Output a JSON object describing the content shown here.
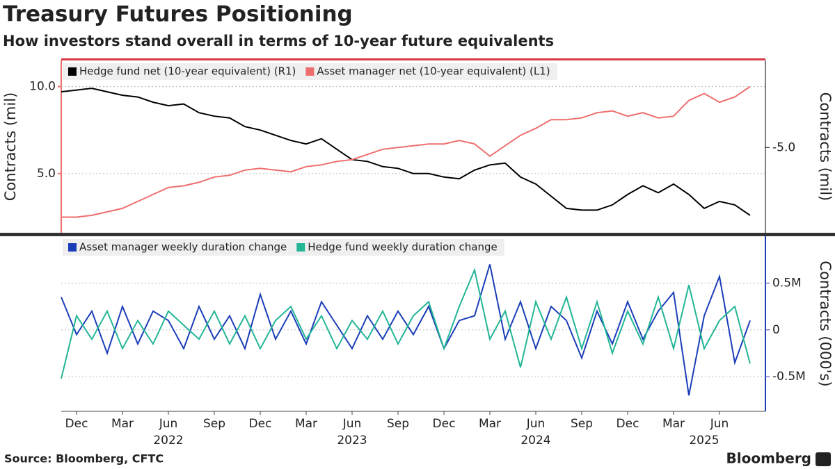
{
  "title": "Treasury Futures Positioning",
  "subtitle": "How investors stand overall in terms of 10-year future equivalents",
  "source": "Source: Bloomberg, CFTC",
  "brand": "Bloomberg",
  "chart_data": [
    {
      "type": "line",
      "ylabel": "Contracts (mil)",
      "y2label": "Contracts (mil)",
      "x": [
        "2021-11",
        "2021-12",
        "2022-01",
        "2022-02",
        "2022-03",
        "2022-04",
        "2022-05",
        "2022-06",
        "2022-07",
        "2022-08",
        "2022-09",
        "2022-10",
        "2022-11",
        "2022-12",
        "2023-01",
        "2023-02",
        "2023-03",
        "2023-04",
        "2023-05",
        "2023-06",
        "2023-07",
        "2023-08",
        "2023-09",
        "2023-10",
        "2023-11",
        "2023-12",
        "2024-01",
        "2024-02",
        "2024-03",
        "2024-04",
        "2024-05",
        "2024-06",
        "2024-07",
        "2024-08",
        "2024-09",
        "2024-10",
        "2024-11",
        "2024-12",
        "2025-01",
        "2025-02",
        "2025-03",
        "2025-04",
        "2025-05",
        "2025-06",
        "2025-07",
        "2025-08"
      ],
      "xlim": [
        "2021-11",
        "2025-09"
      ],
      "ylim": [
        1.6,
        11.5
      ],
      "yticks": [
        {
          "value": 5,
          "label": "5.0"
        },
        {
          "value": 10,
          "label": "10.0"
        }
      ],
      "y2lim": [
        -9.9,
        0
      ],
      "y2ticks": [
        {
          "value": -5,
          "label": "-5.0"
        }
      ],
      "grid": true,
      "legend": "top-left",
      "series": [
        {
          "name": "Hedge fund net (10-year equivalent) (R1)",
          "color": "#000000",
          "axis": "y2",
          "values": [
            -1.8,
            -1.7,
            -1.6,
            -1.8,
            -2.0,
            -2.1,
            -2.4,
            -2.6,
            -2.5,
            -3.0,
            -3.2,
            -3.3,
            -3.8,
            -4.0,
            -4.3,
            -4.6,
            -4.8,
            -4.5,
            -5.1,
            -5.7,
            -5.8,
            -6.1,
            -6.2,
            -6.5,
            -6.5,
            -6.7,
            -6.8,
            -6.3,
            -6.0,
            -5.9,
            -6.7,
            -7.1,
            -7.8,
            -8.5,
            -8.6,
            -8.6,
            -8.3,
            -7.7,
            -7.2,
            -7.6,
            -7.1,
            -7.7,
            -8.5,
            -8.1,
            -8.3,
            -8.9
          ]
        },
        {
          "name": "Asset manager net (10-year equivalent) (L1)",
          "color": "#ee6e6e",
          "axis": "y",
          "values": [
            2.5,
            2.5,
            2.6,
            2.8,
            3.0,
            3.4,
            3.8,
            4.2,
            4.3,
            4.5,
            4.8,
            4.9,
            5.2,
            5.3,
            5.2,
            5.1,
            5.4,
            5.5,
            5.7,
            5.8,
            6.1,
            6.4,
            6.5,
            6.6,
            6.7,
            6.7,
            6.9,
            6.7,
            6.0,
            6.6,
            7.2,
            7.6,
            8.1,
            8.1,
            8.2,
            8.5,
            8.6,
            8.3,
            8.5,
            8.2,
            8.3,
            9.2,
            9.6,
            9.1,
            9.4,
            10.0
          ]
        }
      ]
    },
    {
      "type": "line",
      "y2label": "Contracts (000's)",
      "x": [
        "2021-11",
        "2021-12",
        "2022-01",
        "2022-02",
        "2022-03",
        "2022-04",
        "2022-05",
        "2022-06",
        "2022-07",
        "2022-08",
        "2022-09",
        "2022-10",
        "2022-11",
        "2022-12",
        "2023-01",
        "2023-02",
        "2023-03",
        "2023-04",
        "2023-05",
        "2023-06",
        "2023-07",
        "2023-08",
        "2023-09",
        "2023-10",
        "2023-11",
        "2023-12",
        "2024-01",
        "2024-02",
        "2024-03",
        "2024-04",
        "2024-05",
        "2024-06",
        "2024-07",
        "2024-08",
        "2024-09",
        "2024-10",
        "2024-11",
        "2024-12",
        "2025-01",
        "2025-02",
        "2025-03",
        "2025-04",
        "2025-05",
        "2025-06",
        "2025-07",
        "2025-08"
      ],
      "xlim": [
        "2021-11",
        "2025-09"
      ],
      "xticks": [
        {
          "value": "2021-12",
          "label": "Dec"
        },
        {
          "value": "2022-03",
          "label": "Mar"
        },
        {
          "value": "2022-06",
          "label": "Jun"
        },
        {
          "value": "2022-09",
          "label": "Sep"
        },
        {
          "value": "2022-12",
          "label": "Dec"
        },
        {
          "value": "2023-03",
          "label": "Mar"
        },
        {
          "value": "2023-06",
          "label": "Jun"
        },
        {
          "value": "2023-09",
          "label": "Sep"
        },
        {
          "value": "2023-12",
          "label": "Dec"
        },
        {
          "value": "2024-03",
          "label": "Mar"
        },
        {
          "value": "2024-06",
          "label": "Jun"
        },
        {
          "value": "2024-09",
          "label": "Sep"
        },
        {
          "value": "2024-12",
          "label": "Dec"
        },
        {
          "value": "2025-03",
          "label": "Mar"
        },
        {
          "value": "2025-06",
          "label": "Jun"
        }
      ],
      "year_labels": [
        {
          "value": "2022-06",
          "label": "2022"
        },
        {
          "value": "2023-06",
          "label": "2023"
        },
        {
          "value": "2024-06",
          "label": "2024"
        },
        {
          "value": "2025-05",
          "label": "2025"
        }
      ],
      "y2lim": [
        -0.87,
        1.0
      ],
      "y2ticks": [
        {
          "value": 0.5,
          "label": "0.5M"
        },
        0,
        {
          "value": -0.5,
          "label": "-0.5M"
        }
      ],
      "grid": true,
      "legend": "top-left",
      "series": [
        {
          "name": "Asset manager weekly duration change",
          "color": "#1a3db8",
          "axis": "y2",
          "values": [
            0.35,
            -0.05,
            0.2,
            -0.25,
            0.25,
            -0.15,
            0.2,
            0.1,
            -0.2,
            0.25,
            -0.1,
            0.15,
            -0.2,
            0.38,
            -0.1,
            0.2,
            -0.15,
            0.3,
            0.05,
            -0.2,
            0.15,
            -0.1,
            0.2,
            -0.05,
            0.25,
            -0.2,
            0.1,
            0.15,
            0.7,
            -0.1,
            0.3,
            -0.2,
            0.25,
            0.1,
            -0.3,
            0.2,
            -0.15,
            0.3,
            -0.1,
            0.2,
            0.4,
            -0.7,
            0.15,
            0.57,
            -0.35,
            0.1
          ]
        },
        {
          "name": "Hedge fund weekly duration change",
          "color": "#22b596",
          "axis": "y2",
          "values": [
            -0.52,
            0.15,
            -0.1,
            0.2,
            -0.2,
            0.1,
            -0.15,
            0.2,
            0.05,
            -0.1,
            0.2,
            -0.15,
            0.15,
            -0.2,
            0.1,
            0.25,
            -0.1,
            0.15,
            -0.2,
            0.1,
            -0.1,
            0.2,
            -0.15,
            0.15,
            0.3,
            -0.2,
            0.25,
            0.64,
            -0.1,
            0.2,
            -0.4,
            0.3,
            -0.1,
            0.35,
            -0.2,
            0.3,
            -0.25,
            0.2,
            -0.15,
            0.35,
            -0.2,
            0.48,
            -0.2,
            0.1,
            0.25,
            -0.36
          ]
        }
      ]
    }
  ]
}
